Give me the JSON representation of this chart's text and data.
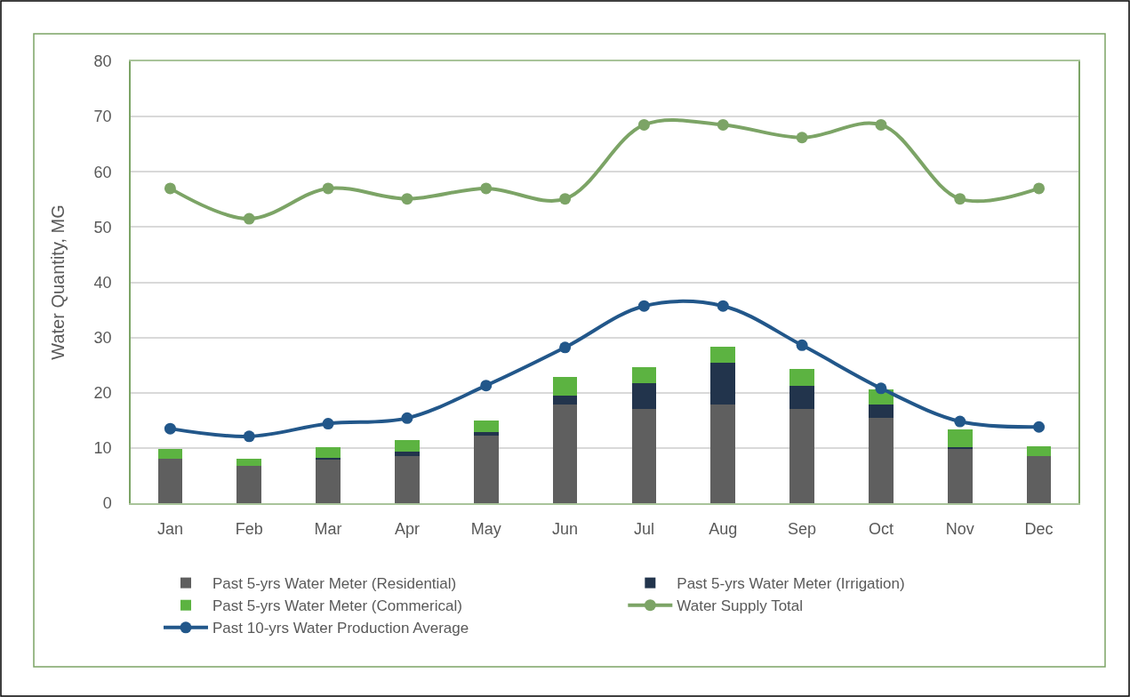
{
  "chart_data": {
    "type": "bar",
    "stacked": true,
    "ylabel": "Water Quantity, MG",
    "categories": [
      "Jan",
      "Feb",
      "Mar",
      "Apr",
      "May",
      "Jun",
      "Jul",
      "Aug",
      "Sep",
      "Oct",
      "Nov",
      "Dec"
    ],
    "ylim": [
      0,
      80
    ],
    "yticks": [
      0,
      10,
      20,
      30,
      40,
      50,
      60,
      70,
      80
    ],
    "grid": "y",
    "legend": "bottom",
    "marker": "circle",
    "line_style": "solid",
    "series": [
      {
        "name": "Past 5-yrs Water Meter (Residential)",
        "color": "#5f5f5f",
        "values": [
          8.1,
          6.7,
          8.0,
          8.6,
          12.3,
          17.8,
          17.1,
          17.8,
          17.1,
          15.5,
          9.9,
          8.5
        ]
      },
      {
        "name": "Past 5-yrs Water Meter (Irrigation)",
        "color": "#22344c",
        "values": [
          0,
          0,
          0.2,
          0.8,
          0.5,
          1.6,
          4.6,
          7.6,
          4.1,
          2.3,
          0.3,
          0
        ]
      },
      {
        "name": "Past 5-yrs Water Meter (Commerical)",
        "color": "#5cb341",
        "values": [
          1.7,
          1.4,
          2.0,
          2.0,
          2.2,
          3.4,
          3.0,
          3.0,
          3.1,
          2.8,
          3.1,
          1.8
        ]
      },
      {
        "name": "Water Supply Total",
        "type": "line",
        "color": "#7ca466",
        "values": [
          57.0,
          51.5,
          57.0,
          55.1,
          57.0,
          55.1,
          68.5,
          68.5,
          66.2,
          68.5,
          55.1,
          57.0
        ]
      },
      {
        "name": "Past 10-yrs Water Production Average",
        "type": "line",
        "color": "#22578a",
        "values": [
          13.5,
          12.1,
          14.4,
          15.4,
          21.3,
          28.2,
          35.7,
          35.7,
          28.6,
          20.8,
          14.8,
          13.8
        ]
      }
    ]
  }
}
